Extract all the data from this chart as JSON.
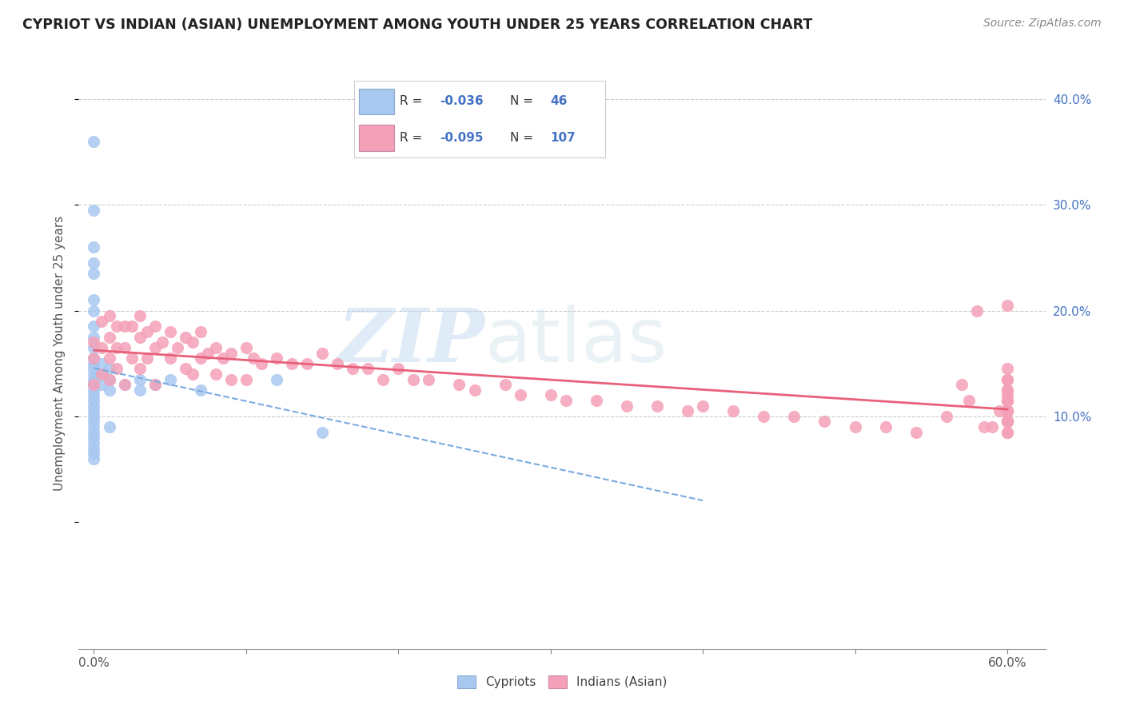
{
  "title": "CYPRIOT VS INDIAN (ASIAN) UNEMPLOYMENT AMONG YOUTH UNDER 25 YEARS CORRELATION CHART",
  "source": "Source: ZipAtlas.com",
  "ylabel": "Unemployment Among Youth under 25 years",
  "xlim": [
    -0.01,
    0.625
  ],
  "ylim": [
    -0.12,
    0.44
  ],
  "right_y_ticks": [
    0.1,
    0.2,
    0.3,
    0.4
  ],
  "right_y_labels": [
    "10.0%",
    "20.0%",
    "30.0%",
    "40.0%"
  ],
  "x_tick_positions": [
    0.0,
    0.6
  ],
  "x_tick_labels": [
    "0.0%",
    "60.0%"
  ],
  "cypriot_color": "#a8c8f0",
  "indian_color": "#f4a0b8",
  "cypriot_line_color": "#7aaae0",
  "indian_line_color": "#e8607a",
  "watermark_zip": "ZIP",
  "watermark_atlas": "atlas",
  "legend_R1": "-0.036",
  "legend_N1": "46",
  "legend_R2": "-0.095",
  "legend_N2": "107",
  "cypriot_scatter_x": [
    0.0,
    0.0,
    0.0,
    0.0,
    0.0,
    0.0,
    0.0,
    0.0,
    0.0,
    0.0,
    0.0,
    0.0,
    0.0,
    0.0,
    0.0,
    0.0,
    0.0,
    0.0,
    0.0,
    0.0,
    0.0,
    0.0,
    0.0,
    0.0,
    0.0,
    0.0,
    0.0,
    0.0,
    0.0,
    0.0,
    0.0,
    0.005,
    0.005,
    0.005,
    0.01,
    0.01,
    0.01,
    0.01,
    0.02,
    0.03,
    0.03,
    0.04,
    0.05,
    0.07,
    0.12,
    0.15
  ],
  "cypriot_scatter_y": [
    0.36,
    0.295,
    0.26,
    0.245,
    0.235,
    0.21,
    0.2,
    0.185,
    0.175,
    0.165,
    0.155,
    0.15,
    0.145,
    0.14,
    0.135,
    0.13,
    0.13,
    0.125,
    0.12,
    0.115,
    0.11,
    0.105,
    0.1,
    0.095,
    0.09,
    0.085,
    0.08,
    0.075,
    0.07,
    0.065,
    0.06,
    0.15,
    0.14,
    0.13,
    0.145,
    0.135,
    0.125,
    0.09,
    0.13,
    0.135,
    0.125,
    0.13,
    0.135,
    0.125,
    0.135,
    0.085
  ],
  "indian_scatter_x": [
    0.0,
    0.0,
    0.0,
    0.005,
    0.005,
    0.005,
    0.01,
    0.01,
    0.01,
    0.01,
    0.015,
    0.015,
    0.015,
    0.02,
    0.02,
    0.02,
    0.025,
    0.025,
    0.03,
    0.03,
    0.03,
    0.035,
    0.035,
    0.04,
    0.04,
    0.04,
    0.045,
    0.05,
    0.05,
    0.055,
    0.06,
    0.06,
    0.065,
    0.065,
    0.07,
    0.07,
    0.075,
    0.08,
    0.08,
    0.085,
    0.09,
    0.09,
    0.1,
    0.1,
    0.105,
    0.11,
    0.12,
    0.13,
    0.14,
    0.15,
    0.16,
    0.17,
    0.18,
    0.19,
    0.2,
    0.21,
    0.22,
    0.24,
    0.25,
    0.27,
    0.28,
    0.3,
    0.31,
    0.33,
    0.35,
    0.37,
    0.39,
    0.4,
    0.42,
    0.44,
    0.46,
    0.48,
    0.5,
    0.52,
    0.54,
    0.56,
    0.57,
    0.575,
    0.58,
    0.585,
    0.59,
    0.595,
    0.6,
    0.6,
    0.6,
    0.6,
    0.6,
    0.6,
    0.6,
    0.6,
    0.6,
    0.6,
    0.6,
    0.6,
    0.6,
    0.6,
    0.6,
    0.6,
    0.6,
    0.6,
    0.6,
    0.6,
    0.6,
    0.6,
    0.6,
    0.6,
    0.6
  ],
  "indian_scatter_y": [
    0.17,
    0.155,
    0.13,
    0.19,
    0.165,
    0.14,
    0.195,
    0.175,
    0.155,
    0.135,
    0.185,
    0.165,
    0.145,
    0.185,
    0.165,
    0.13,
    0.185,
    0.155,
    0.195,
    0.175,
    0.145,
    0.18,
    0.155,
    0.185,
    0.165,
    0.13,
    0.17,
    0.18,
    0.155,
    0.165,
    0.175,
    0.145,
    0.17,
    0.14,
    0.18,
    0.155,
    0.16,
    0.165,
    0.14,
    0.155,
    0.16,
    0.135,
    0.165,
    0.135,
    0.155,
    0.15,
    0.155,
    0.15,
    0.15,
    0.16,
    0.15,
    0.145,
    0.145,
    0.135,
    0.145,
    0.135,
    0.135,
    0.13,
    0.125,
    0.13,
    0.12,
    0.12,
    0.115,
    0.115,
    0.11,
    0.11,
    0.105,
    0.11,
    0.105,
    0.1,
    0.1,
    0.095,
    0.09,
    0.09,
    0.085,
    0.1,
    0.13,
    0.115,
    0.2,
    0.09,
    0.09,
    0.105,
    0.095,
    0.145,
    0.135,
    0.125,
    0.115,
    0.105,
    0.095,
    0.135,
    0.105,
    0.12,
    0.105,
    0.085,
    0.125,
    0.095,
    0.115,
    0.105,
    0.095,
    0.115,
    0.105,
    0.095,
    0.085,
    0.205,
    0.115,
    0.105,
    0.095
  ]
}
